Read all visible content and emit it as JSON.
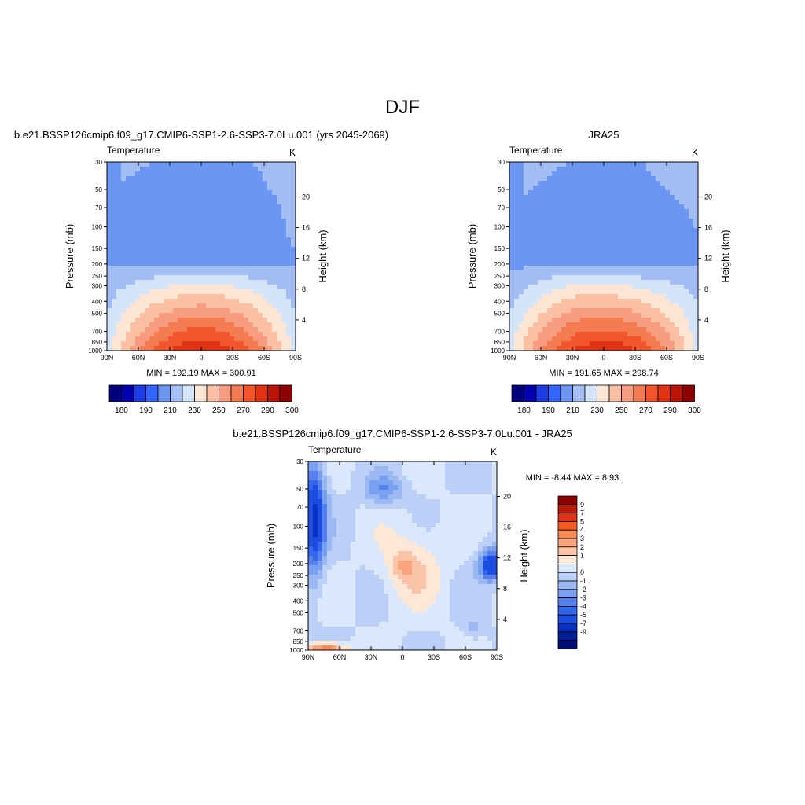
{
  "page_title": "DJF",
  "color_scale": {
    "abs_colors": [
      "#00007f",
      "#0000b2",
      "#1c3de6",
      "#3366ff",
      "#6b96f2",
      "#a3bdf5",
      "#d4e4fb",
      "#fde5d4",
      "#fbc0a3",
      "#f79c7e",
      "#f57c52",
      "#f2542c",
      "#e03314",
      "#bb1508",
      "#8c0000"
    ],
    "abs_labels": [
      "180",
      "190",
      "210",
      "230",
      "250",
      "270",
      "290",
      "300"
    ],
    "diff_colors": [
      "#8c0000",
      "#b81a0a",
      "#de3214",
      "#f55c24",
      "#f88b57",
      "#faa47e",
      "#fbc4a8",
      "#fde8d8",
      "#dbe8fb",
      "#bcd0f7",
      "#9cb8f3",
      "#7aa0f0",
      "#5780ee",
      "#3366ee",
      "#1c4ce0",
      "#0a30c4",
      "#001e96",
      "#000f78"
    ],
    "diff_labels": [
      "9",
      "7",
      "5",
      "4",
      "3",
      "2",
      "1",
      "0",
      "-1",
      "-2",
      "-3",
      "-4",
      "-5",
      "-7",
      "-9"
    ]
  },
  "chart_data": [
    {
      "type": "heatmap",
      "title": "b.e21.BSSP126cmip6.f09_g17.CMIP6-SSP1-2.6-SSP3-7.0Lu.001 (yrs 2045-2069)",
      "left_string": "Temperature",
      "right_string": "K",
      "xlabel": "",
      "ylabel": "Pressure (mb)",
      "y2label": "Height (km)",
      "x_ticks": [
        "90N",
        "60N",
        "30N",
        "0",
        "30S",
        "60S",
        "90S"
      ],
      "y_ticks": [
        "30",
        "50",
        "70",
        "100",
        "150",
        "200",
        "250",
        "300",
        "400",
        "500",
        "700",
        "850",
        "1000"
      ],
      "y2_ticks": [
        "20",
        "16",
        "12",
        "8",
        "4"
      ],
      "stats": "MIN = 192.19  MAX = 300.91",
      "min": 192.19,
      "max": 300.91,
      "units": "K"
    },
    {
      "type": "heatmap",
      "title": "JRA25",
      "left_string": "Temperature",
      "right_string": "K",
      "xlabel": "",
      "ylabel": "Pressure (mb)",
      "y2label": "Height (km)",
      "x_ticks": [
        "90N",
        "60N",
        "30N",
        "0",
        "30S",
        "60S",
        "90S"
      ],
      "y_ticks": [
        "30",
        "50",
        "70",
        "100",
        "150",
        "200",
        "250",
        "300",
        "400",
        "500",
        "700",
        "850",
        "1000"
      ],
      "y2_ticks": [
        "20",
        "16",
        "12",
        "8",
        "4"
      ],
      "stats": "MIN = 191.65  MAX = 298.74",
      "min": 191.65,
      "max": 298.74,
      "units": "K"
    },
    {
      "type": "heatmap",
      "title": "b.e21.BSSP126cmip6.f09_g17.CMIP6-SSP1-2.6-SSP3-7.0Lu.001 - JRA25",
      "left_string": "Temperature",
      "right_string": "K",
      "xlabel": "",
      "ylabel": "Pressure (mb)",
      "y2label": "Height (km)",
      "x_ticks": [
        "90N",
        "60N",
        "30N",
        "0",
        "30S",
        "60S",
        "90S"
      ],
      "y_ticks": [
        "30",
        "50",
        "70",
        "100",
        "150",
        "200",
        "250",
        "300",
        "400",
        "500",
        "700",
        "850",
        "1000"
      ],
      "y2_ticks": [
        "20",
        "16",
        "12",
        "8",
        "4"
      ],
      "stats": "MIN =  -8.44  MAX =   8.93",
      "min": -8.44,
      "max": 8.93,
      "units": "K"
    }
  ]
}
